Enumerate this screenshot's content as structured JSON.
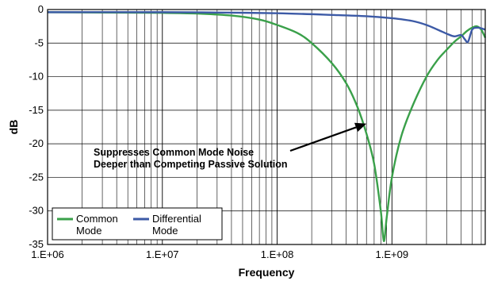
{
  "chart_data": {
    "type": "line",
    "title": "",
    "xlabel": "Frequency",
    "ylabel": "dB",
    "x_scale": "log",
    "xlim": [
      1000000,
      6500000000
    ],
    "ylim": [
      -35,
      0
    ],
    "x_ticks": [
      {
        "value": 1000000,
        "label": "1.E+06"
      },
      {
        "value": 10000000,
        "label": "1.E+07"
      },
      {
        "value": 100000000,
        "label": "1.E+08"
      },
      {
        "value": 1000000000,
        "label": "1.E+09"
      }
    ],
    "y_ticks": [
      {
        "value": 0,
        "label": "0"
      },
      {
        "value": -5,
        "label": "-5"
      },
      {
        "value": -10,
        "label": "-10"
      },
      {
        "value": -15,
        "label": "-15"
      },
      {
        "value": -20,
        "label": "-20"
      },
      {
        "value": -25,
        "label": "-25"
      },
      {
        "value": -30,
        "label": "-30"
      },
      {
        "value": -35,
        "label": "-35"
      }
    ],
    "grid": true,
    "legend_position": "bottom-left",
    "series": [
      {
        "name": "Common Mode",
        "legend_lines": [
          "Common",
          "Mode"
        ],
        "color": "#3aa04a",
        "points": [
          [
            1000000,
            -0.4
          ],
          [
            3000000,
            -0.45
          ],
          [
            10000000,
            -0.5
          ],
          [
            20000000,
            -0.6
          ],
          [
            40000000,
            -0.9
          ],
          [
            70000000,
            -1.5
          ],
          [
            100000000,
            -2.3
          ],
          [
            150000000,
            -3.5
          ],
          [
            200000000,
            -5.0
          ],
          [
            300000000,
            -8.0
          ],
          [
            400000000,
            -11.0
          ],
          [
            500000000,
            -14.5
          ],
          [
            600000000,
            -18.5
          ],
          [
            700000000,
            -23.0
          ],
          [
            800000000,
            -30.0
          ],
          [
            850000000,
            -34.5
          ],
          [
            900000000,
            -31.0
          ],
          [
            1000000000,
            -25.0
          ],
          [
            1200000000,
            -19.0
          ],
          [
            1500000000,
            -14.5
          ],
          [
            2000000000,
            -10.0
          ],
          [
            2500000000,
            -7.5
          ],
          [
            3000000000,
            -6.0
          ],
          [
            3500000000,
            -4.8
          ],
          [
            4000000000,
            -4.0
          ],
          [
            4500000000,
            -3.2
          ],
          [
            5000000000,
            -2.7
          ],
          [
            5500000000,
            -2.5
          ],
          [
            6000000000,
            -3.0
          ],
          [
            6500000000,
            -4.2
          ]
        ]
      },
      {
        "name": "Differential Mode",
        "legend_lines": [
          "Differential",
          "Mode"
        ],
        "color": "#3c5aa6",
        "points": [
          [
            1000000,
            -0.4
          ],
          [
            10000000,
            -0.4
          ],
          [
            30000000,
            -0.45
          ],
          [
            100000000,
            -0.55
          ],
          [
            300000000,
            -0.8
          ],
          [
            600000000,
            -1.0
          ],
          [
            1000000000,
            -1.3
          ],
          [
            1500000000,
            -1.7
          ],
          [
            2000000000,
            -2.3
          ],
          [
            2500000000,
            -3.0
          ],
          [
            3000000000,
            -3.6
          ],
          [
            3500000000,
            -4.0
          ],
          [
            4000000000,
            -3.8
          ],
          [
            4300000000,
            -4.4
          ],
          [
            4600000000,
            -4.8
          ],
          [
            5000000000,
            -3.0
          ],
          [
            5500000000,
            -2.7
          ],
          [
            6000000000,
            -2.8
          ],
          [
            6500000000,
            -3.0
          ]
        ]
      }
    ],
    "annotations": [
      {
        "lines": [
          "Suppresses Common Mode Noise",
          "Deeper than Competing Passive Solution"
        ],
        "arrow_to": [
          600000000,
          -17
        ]
      }
    ]
  }
}
